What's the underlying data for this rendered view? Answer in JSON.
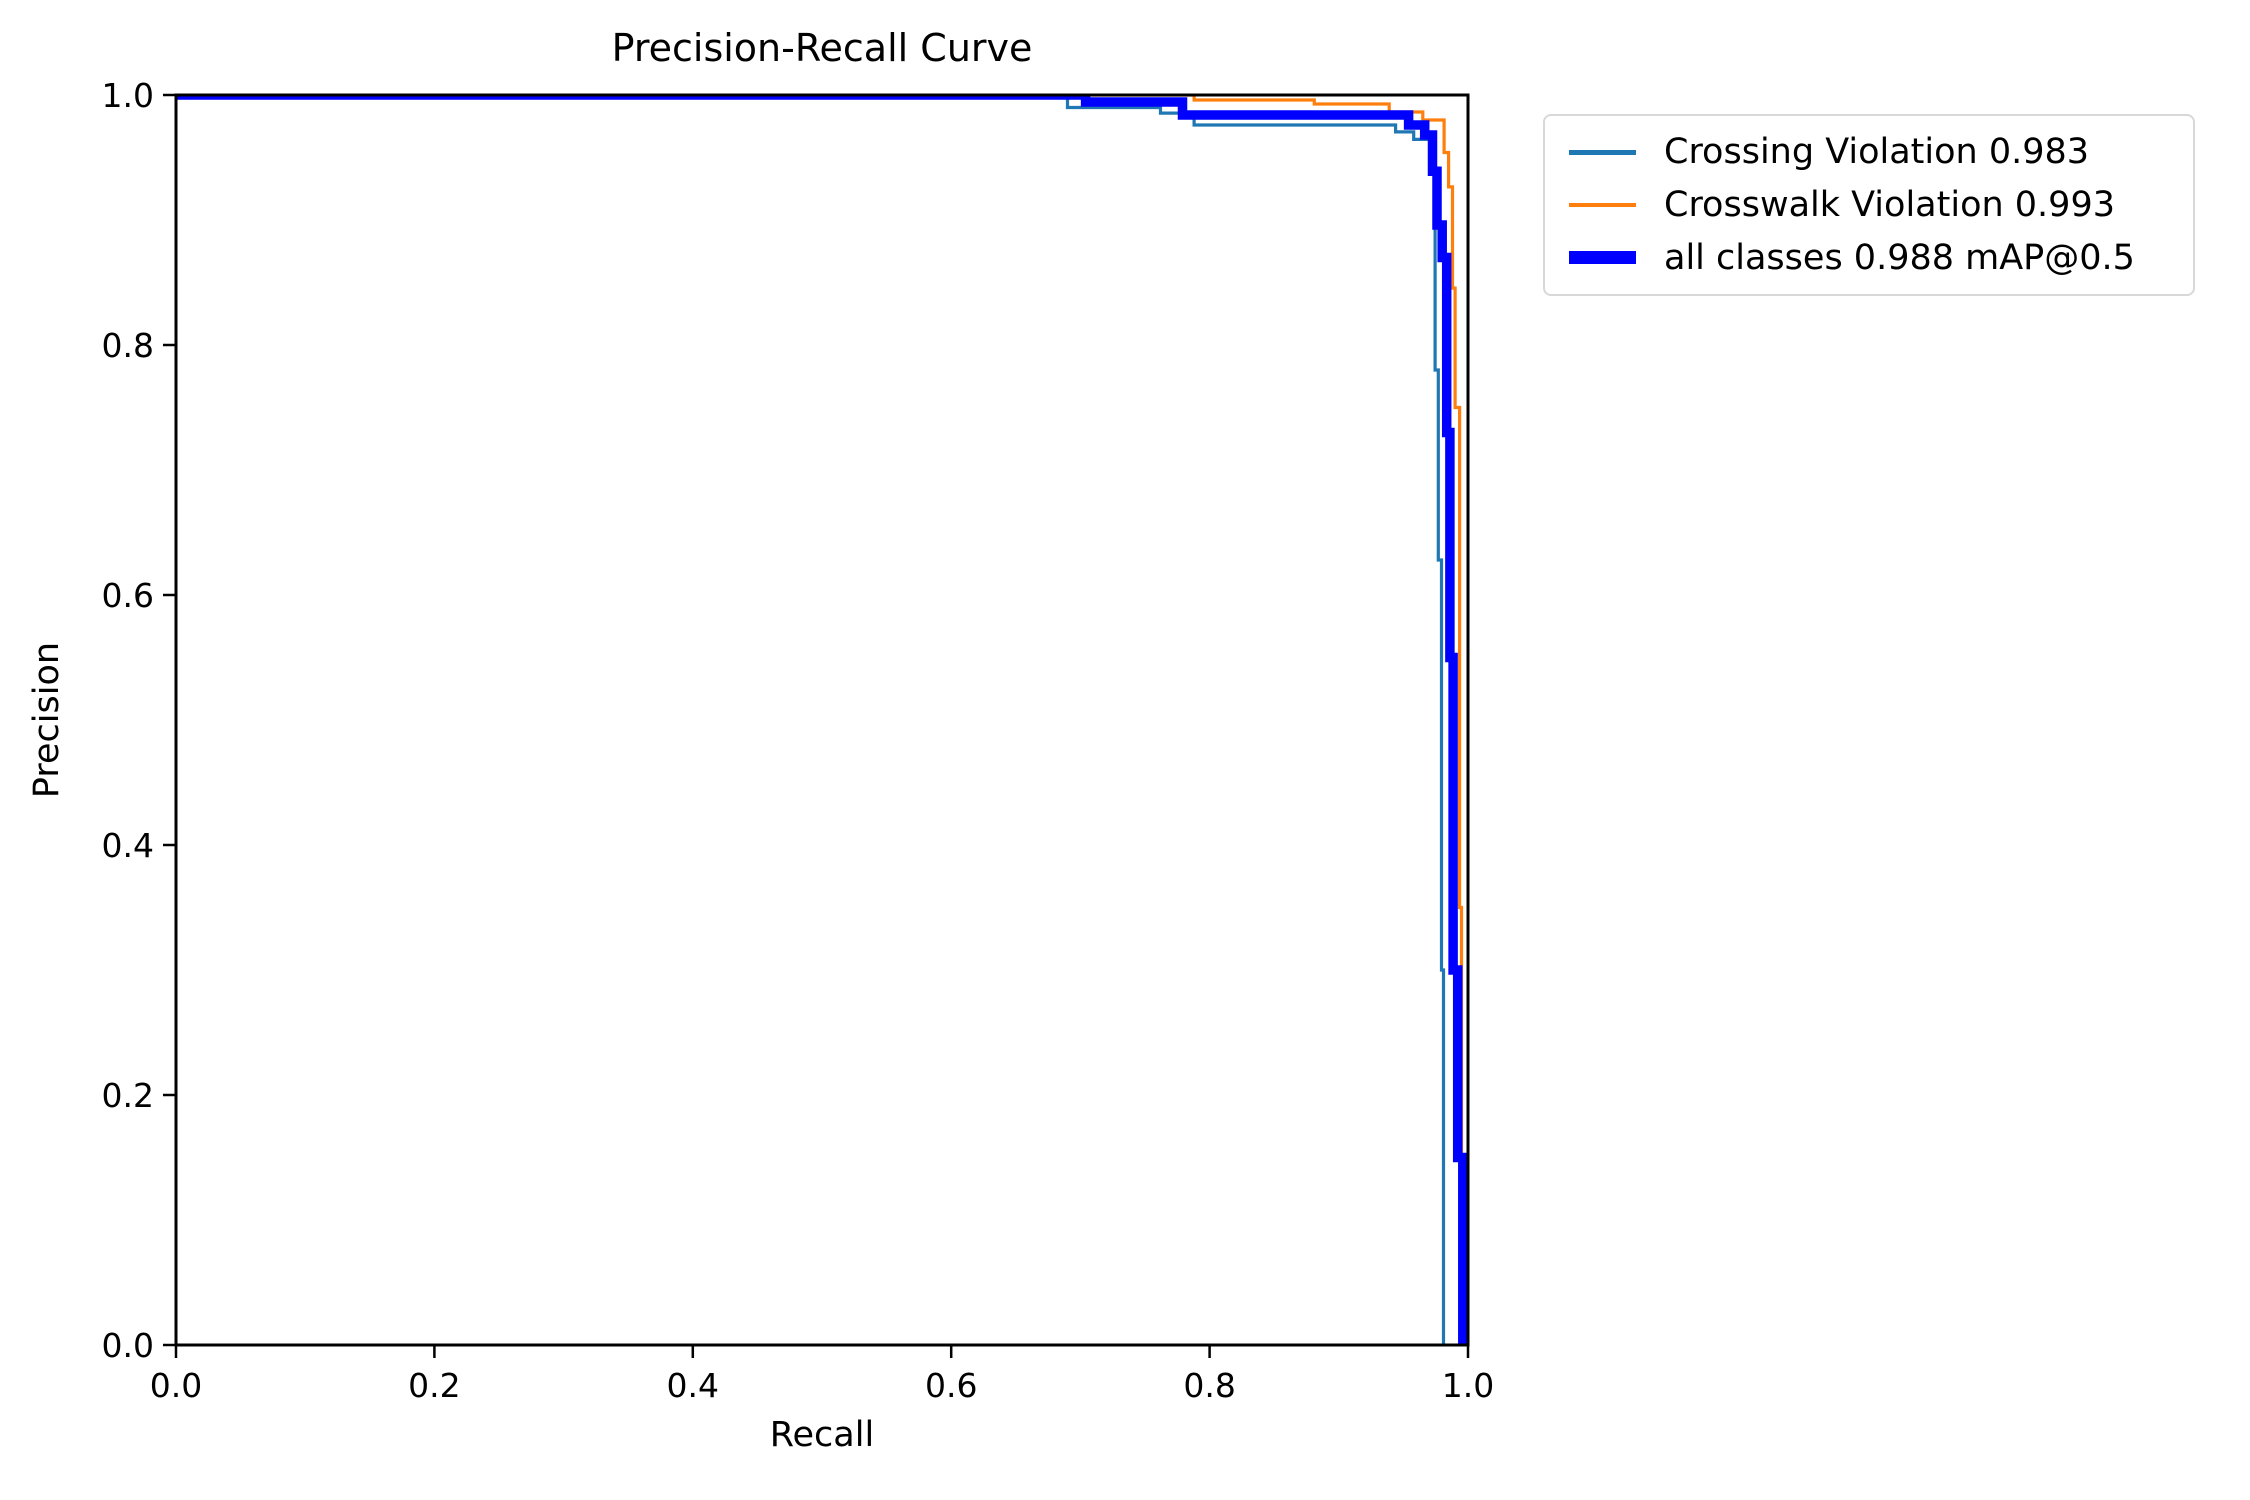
{
  "chart": {
    "title": "Precision-Recall Curve",
    "xlabel": "Recall",
    "ylabel": "Precision"
  },
  "chart_data": {
    "type": "line",
    "title": "Precision-Recall Curve",
    "xlabel": "Recall",
    "ylabel": "Precision",
    "xlim": [
      0.0,
      1.0
    ],
    "ylim": [
      0.0,
      1.0
    ],
    "xticks": [
      "0.0",
      "0.2",
      "0.4",
      "0.6",
      "0.8",
      "1.0"
    ],
    "yticks": [
      "0.0",
      "0.2",
      "0.4",
      "0.6",
      "0.8",
      "1.0"
    ],
    "grid": false,
    "legend_position": "outside-upper-right",
    "axes_color": "#000000",
    "series": [
      {
        "name": "Crossing Violation",
        "label": "Crossing Violation 0.983",
        "ap": 0.983,
        "color": "#1f77b4",
        "linewidth": 3.2,
        "points": [
          [
            0.0,
            1.0
          ],
          [
            0.69,
            1.0
          ],
          [
            0.69,
            0.99
          ],
          [
            0.762,
            0.99
          ],
          [
            0.762,
            0.9855
          ],
          [
            0.788,
            0.9855
          ],
          [
            0.788,
            0.976
          ],
          [
            0.944,
            0.976
          ],
          [
            0.944,
            0.9705
          ],
          [
            0.958,
            0.9705
          ],
          [
            0.958,
            0.9645
          ],
          [
            0.9705,
            0.9645
          ],
          [
            0.9705,
            0.9365
          ],
          [
            0.9745,
            0.9365
          ],
          [
            0.9745,
            0.78
          ],
          [
            0.977,
            0.78
          ],
          [
            0.977,
            0.628
          ],
          [
            0.9795,
            0.628
          ],
          [
            0.9795,
            0.3
          ],
          [
            0.981,
            0.3
          ],
          [
            0.981,
            0.0
          ]
        ]
      },
      {
        "name": "Crosswalk Violation",
        "label": "Crosswalk Violation 0.993",
        "ap": 0.993,
        "color": "#ff7f0e",
        "linewidth": 3.2,
        "points": [
          [
            0.0,
            1.0
          ],
          [
            0.788,
            1.0
          ],
          [
            0.788,
            0.996
          ],
          [
            0.881,
            0.996
          ],
          [
            0.881,
            0.9928
          ],
          [
            0.939,
            0.9928
          ],
          [
            0.939,
            0.9864
          ],
          [
            0.965,
            0.9864
          ],
          [
            0.965,
            0.98
          ],
          [
            0.9815,
            0.98
          ],
          [
            0.9815,
            0.954
          ],
          [
            0.985,
            0.954
          ],
          [
            0.985,
            0.9265
          ],
          [
            0.988,
            0.9265
          ],
          [
            0.988,
            0.8455
          ],
          [
            0.99,
            0.8455
          ],
          [
            0.99,
            0.75
          ],
          [
            0.9935,
            0.75
          ],
          [
            0.9935,
            0.35
          ],
          [
            0.995,
            0.35
          ],
          [
            0.995,
            0.0
          ]
        ]
      },
      {
        "name": "all classes",
        "label": "all classes 0.988 mAP@0.5",
        "ap": 0.988,
        "map_at": "mAP@0.5",
        "color": "#0000ff",
        "linewidth": 9.5,
        "points": [
          [
            0.0,
            1.0
          ],
          [
            0.704,
            1.0
          ],
          [
            0.704,
            0.9944
          ],
          [
            0.779,
            0.9944
          ],
          [
            0.779,
            0.984
          ],
          [
            0.954,
            0.984
          ],
          [
            0.954,
            0.976
          ],
          [
            0.9665,
            0.976
          ],
          [
            0.9665,
            0.968
          ],
          [
            0.9725,
            0.968
          ],
          [
            0.9725,
            0.939
          ],
          [
            0.976,
            0.939
          ],
          [
            0.976,
            0.896
          ],
          [
            0.98,
            0.896
          ],
          [
            0.98,
            0.87
          ],
          [
            0.9835,
            0.87
          ],
          [
            0.9835,
            0.73
          ],
          [
            0.986,
            0.73
          ],
          [
            0.986,
            0.55
          ],
          [
            0.9885,
            0.55
          ],
          [
            0.9885,
            0.3
          ],
          [
            0.992,
            0.3
          ],
          [
            0.992,
            0.15
          ],
          [
            0.996,
            0.15
          ],
          [
            0.996,
            0.0
          ]
        ]
      }
    ]
  }
}
